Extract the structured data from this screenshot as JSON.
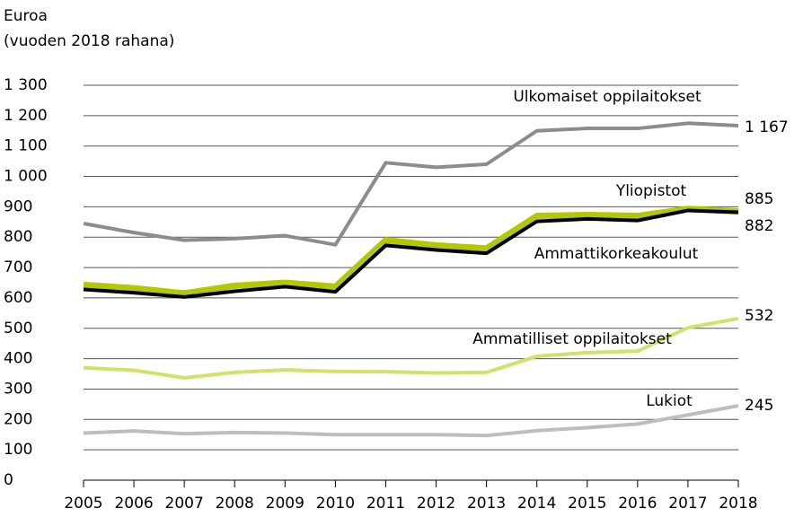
{
  "chart_data": {
    "type": "line",
    "ylabel": [
      "Euroa",
      "(vuoden 2018 rahana)"
    ],
    "categories": [
      "2005",
      "2006",
      "2007",
      "2008",
      "2009",
      "2010",
      "2011",
      "2012",
      "2013",
      "2014",
      "2015",
      "2016",
      "2017",
      "2018"
    ],
    "series": [
      {
        "name": "Ulkomaiset oppilaitokset",
        "color": "#8c8c8c",
        "values": [
          845,
          815,
          790,
          795,
          805,
          775,
          1045,
          1030,
          1040,
          1150,
          1158,
          1158,
          1175,
          1167
        ],
        "value_labels": [
          null,
          null,
          null,
          null,
          null,
          null,
          null,
          null,
          null,
          null,
          null,
          null,
          null,
          "1 167"
        ]
      },
      {
        "name": "Lukiot",
        "color": "#bdbdbd",
        "values": [
          155,
          162,
          153,
          157,
          155,
          150,
          150,
          150,
          147,
          163,
          173,
          185,
          215,
          245
        ],
        "value_labels": [
          null,
          null,
          null,
          null,
          null,
          null,
          null,
          null,
          null,
          null,
          null,
          null,
          null,
          "245"
        ]
      },
      {
        "name": "Ammatilliset oppilaitokset",
        "color": "#d4e06a",
        "values": [
          370,
          362,
          337,
          355,
          363,
          358,
          357,
          353,
          355,
          408,
          420,
          425,
          502,
          532
        ],
        "value_labels": [
          null,
          null,
          null,
          null,
          null,
          null,
          null,
          null,
          null,
          null,
          null,
          null,
          null,
          "532"
        ]
      },
      {
        "name": "Yliopistot",
        "color": "#b4c800",
        "values": [
          643,
          632,
          615,
          640,
          650,
          637,
          790,
          773,
          763,
          870,
          873,
          870,
          893,
          885
        ],
        "value_labels": [
          null,
          null,
          null,
          null,
          null,
          null,
          null,
          null,
          null,
          null,
          null,
          null,
          null,
          "885"
        ]
      },
      {
        "name": "Ammattikorkeakoulut",
        "color": "#000000",
        "values": [
          628,
          617,
          603,
          622,
          637,
          620,
          773,
          758,
          747,
          852,
          860,
          855,
          888,
          882
        ],
        "value_labels": [
          null,
          null,
          null,
          null,
          null,
          null,
          null,
          null,
          null,
          null,
          null,
          null,
          null,
          "882"
        ]
      }
    ],
    "ylim": [
      0,
      1300
    ],
    "yticks": [
      0,
      100,
      200,
      300,
      400,
      500,
      600,
      700,
      800,
      900,
      {
        "value": 1000,
        "label": "1 000"
      },
      {
        "value": 1100,
        "label": "1 100"
      },
      {
        "value": 1200,
        "label": "1 200"
      },
      {
        "value": 1300,
        "label": "1 300"
      }
    ],
    "grid": true
  }
}
